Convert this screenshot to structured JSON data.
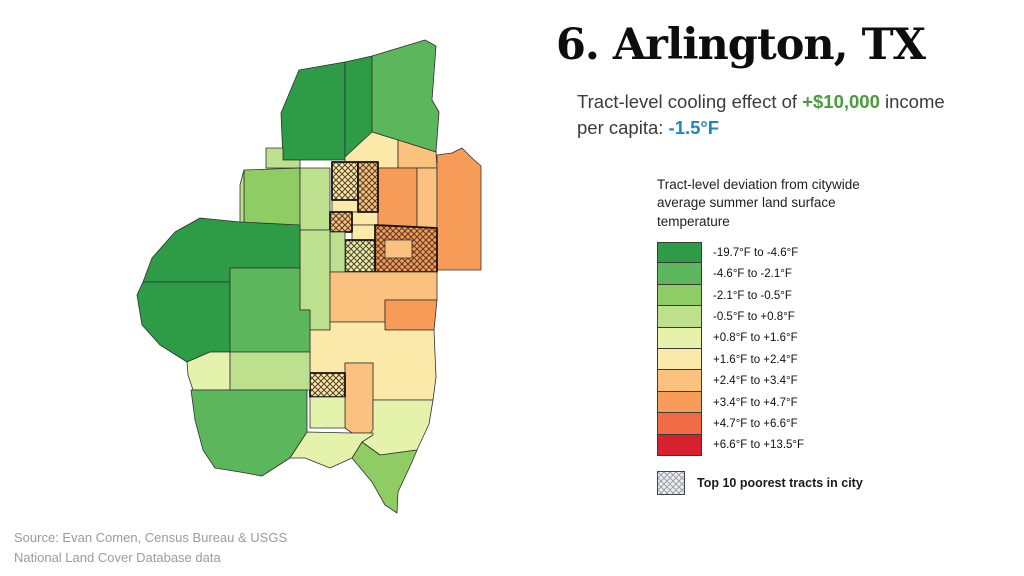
{
  "header": {
    "title": "6. Arlington, TX"
  },
  "subtitle": {
    "line1_part1": "Tract-level cooling effect of ",
    "line1_income": "+$10,000",
    "line1_part2": " income",
    "line2_part1": "per capita: ",
    "line2_temp": "-1.5°F",
    "income_color": "#4a9c3b",
    "temp_color": "#1e86c8"
  },
  "legend": {
    "title": "Tract-level deviation from citywide average summer land surface temperature",
    "items": [
      {
        "label": "-19.7°F to -4.6°F",
        "color": "#2E9C47"
      },
      {
        "label": "-4.6°F to -2.1°F",
        "color": "#5CB75C"
      },
      {
        "label": "-2.1°F to -0.5°F",
        "color": "#8FCC63"
      },
      {
        "label": "-0.5°F to +0.8°F",
        "color": "#BCE08D"
      },
      {
        "label": "+0.8°F to +1.6°F",
        "color": "#E4F2AC"
      },
      {
        "label": "+1.6°F to +2.4°F",
        "color": "#FBE9A9"
      },
      {
        "label": "+2.4°F to +3.4°F",
        "color": "#FAC27E"
      },
      {
        "label": "+3.4°F to +4.7°F",
        "color": "#F79B58"
      },
      {
        "label": "+4.7°F to +6.6°F",
        "color": "#EF6C44"
      },
      {
        "label": "+6.6°F to +13.5°F",
        "color": "#D7212D"
      }
    ],
    "hatch_label": "Top 10 poorest tracts in city"
  },
  "source": {
    "line1": "Source:  Evan Comen, Census Bureau & USGS",
    "line2": "National Land Cover Database data"
  },
  "map": {
    "stroke": "#2f2f2f",
    "hatch_stroke": "#141414",
    "tracts": [
      {
        "p": "299,70 345,62 345,160 283,160 281,113",
        "c": 0
      },
      {
        "p": "345,62 372,56 372,160 345,160",
        "c": 0
      },
      {
        "p": "372,56 425,40 436,46 432,100 439,112 436,152 398,140 372,132",
        "c": 1
      },
      {
        "p": "345,157 372,132 398,140 398,168 345,168",
        "c": 5
      },
      {
        "p": "398,140 436,152 437,168 398,168",
        "c": 6
      },
      {
        "p": "266,148 283,148 283,160 300,160 300,168 266,168",
        "c": 3
      },
      {
        "p": "244,170 300,168 300,230 252,230 252,224 244,222",
        "c": 2
      },
      {
        "p": "240,185 244,170 244,222 240,225",
        "c": 3
      },
      {
        "p": "300,168 330,168 330,230 300,230",
        "c": 3
      },
      {
        "p": "332,200 358,200 358,212 332,212",
        "c": 5
      },
      {
        "p": "352,212 378,212 378,225 352,225",
        "c": 5
      },
      {
        "p": "352,225 375,225 375,240 352,240",
        "c": 5
      },
      {
        "p": "378,168 417,168 417,228 378,228",
        "c": 7
      },
      {
        "p": "417,168 437,168 437,228 417,228",
        "c": 6
      },
      {
        "p": "437,155 452,153 462,148 472,158 481,166 481,270 437,270",
        "c": 7
      },
      {
        "p": "332,162 358,162 358,200 332,200",
        "c": 5,
        "h": true
      },
      {
        "p": "358,162 378,162 378,212 358,212",
        "c": 6,
        "h": true
      },
      {
        "p": "330,212 352,212 352,232 330,232",
        "c": 6,
        "h": true
      },
      {
        "p": "375,225 437,228 437,272 375,272",
        "c": 7,
        "h": true
      },
      {
        "p": "385,240 412,240 412,258 385,258",
        "c": 6
      },
      {
        "p": "345,240 375,240 375,272 345,272",
        "c": 4,
        "h": true
      },
      {
        "p": "330,232 345,232 345,272 330,272",
        "c": 3
      },
      {
        "p": "300,230 330,230 330,330 310,330 310,310 300,310",
        "c": 3
      },
      {
        "p": "330,272 437,272 437,300 385,300 385,322 330,322",
        "c": 6
      },
      {
        "p": "385,300 437,300 434,330 385,330",
        "c": 7
      },
      {
        "p": "310,330 330,330 330,322 385,322 385,330 434,330 436,377 433,400 373,400 373,363 345,363 345,373 310,373",
        "c": 5
      },
      {
        "p": "345,363 373,363 373,433 352,433 345,428",
        "c": 6
      },
      {
        "p": "310,373 345,373 345,397 310,397",
        "c": 5,
        "h": true
      },
      {
        "p": "310,397 345,397 345,428 310,428",
        "c": 4
      },
      {
        "p": "373,400 433,400 429,424 417,450 380,455 362,442 373,430",
        "c": 4
      },
      {
        "p": "362,442 380,455 417,450 412,462 398,492 397,513 385,505 372,482 362,470 352,458",
        "c": 2
      },
      {
        "p": "152,258 175,232 200,218 240,222 300,225 300,268 230,268 230,282 143,282",
        "c": 0
      },
      {
        "p": "143,282 230,282 230,352 210,352 187,362 160,345 142,325 137,295",
        "c": 0
      },
      {
        "p": "230,268 300,268 300,310 310,310 310,352 230,352",
        "c": 1
      },
      {
        "p": "187,362 210,352 230,352 230,390 193,390 188,375",
        "c": 4
      },
      {
        "p": "230,352 310,352 310,390 230,390",
        "c": 3
      },
      {
        "p": "191,390 307,390 307,432 290,458 262,476 240,472 215,468 203,450 195,420",
        "c": 1
      },
      {
        "p": "307,432 352,433 373,433 373,435 362,442 352,458 330,468 305,458 290,458",
        "c": 4
      }
    ]
  }
}
